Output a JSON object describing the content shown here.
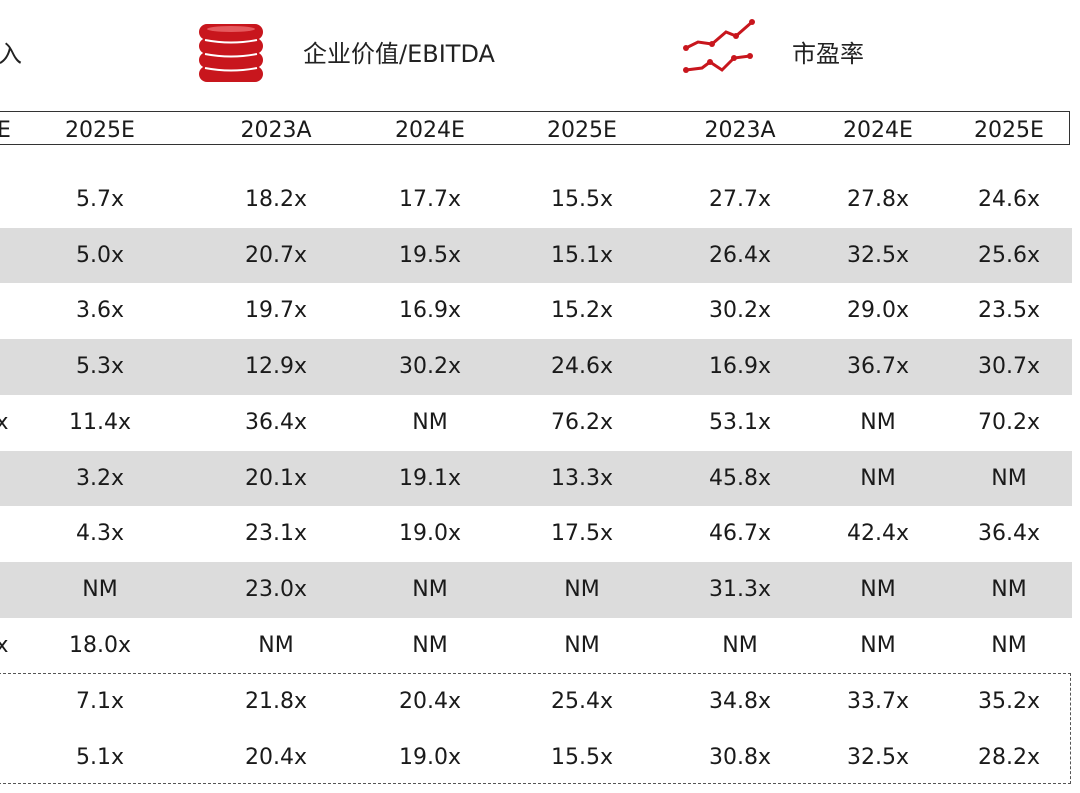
{
  "header": {
    "metric_left_partial": "入",
    "metric_ev_ebitda": "企业价值/EBITDA",
    "metric_pe": "市盈率",
    "icon_coins": "stacked-coins-icon",
    "icon_trend": "line-trend-icon",
    "accent_color": "#c8161d"
  },
  "columns": {
    "partial_left": "E",
    "years": [
      "2025E",
      "2023A",
      "2024E",
      "2025E",
      "2023A",
      "2024E",
      "2025E"
    ]
  },
  "rows": [
    {
      "edge": "",
      "values": [
        "5.7x",
        "18.2x",
        "17.7x",
        "15.5x",
        "27.7x",
        "27.8x",
        "24.6x"
      ]
    },
    {
      "edge": "",
      "values": [
        "5.0x",
        "20.7x",
        "19.5x",
        "15.1x",
        "26.4x",
        "32.5x",
        "25.6x"
      ]
    },
    {
      "edge": "",
      "values": [
        "3.6x",
        "19.7x",
        "16.9x",
        "15.2x",
        "30.2x",
        "29.0x",
        "23.5x"
      ]
    },
    {
      "edge": "",
      "values": [
        "5.3x",
        "12.9x",
        "30.2x",
        "24.6x",
        "16.9x",
        "36.7x",
        "30.7x"
      ]
    },
    {
      "edge": "x",
      "values": [
        "11.4x",
        "36.4x",
        "NM",
        "76.2x",
        "53.1x",
        "NM",
        "70.2x"
      ]
    },
    {
      "edge": "",
      "values": [
        "3.2x",
        "20.1x",
        "19.1x",
        "13.3x",
        "45.8x",
        "NM",
        "NM"
      ]
    },
    {
      "edge": "",
      "values": [
        "4.3x",
        "23.1x",
        "19.0x",
        "17.5x",
        "46.7x",
        "42.4x",
        "36.4x"
      ]
    },
    {
      "edge": "",
      "values": [
        "NM",
        "23.0x",
        "NM",
        "NM",
        "31.3x",
        "NM",
        "NM"
      ]
    },
    {
      "edge": "x",
      "values": [
        "18.0x",
        "NM",
        "NM",
        "NM",
        "NM",
        "NM",
        "NM"
      ]
    }
  ],
  "summary_rows": [
    {
      "values": [
        "7.1x",
        "21.8x",
        "20.4x",
        "25.4x",
        "34.8x",
        "33.7x",
        "35.2x"
      ]
    },
    {
      "values": [
        "5.1x",
        "20.4x",
        "19.0x",
        "15.5x",
        "30.8x",
        "32.5x",
        "28.2x"
      ]
    }
  ]
}
